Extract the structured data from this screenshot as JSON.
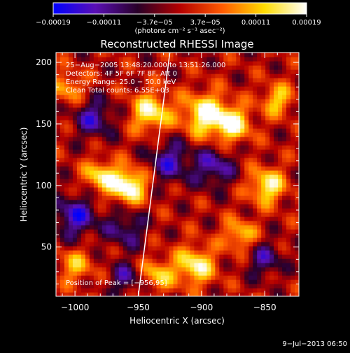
{
  "chart_data": {
    "type": "heatmap",
    "title": "Reconstructed RHESSI Image",
    "xlabel": "Heliocentric X (arcsec)",
    "ylabel": "Heliocentric Y (arcsec)",
    "xlim": [
      -1015,
      -823
    ],
    "ylim": [
      10,
      208
    ],
    "x_ticks": [
      -1000,
      -950,
      -900,
      -850
    ],
    "x_tick_labels": [
      "−1000",
      "−950",
      "−900",
      "−850"
    ],
    "y_ticks": [
      50,
      100,
      150,
      200
    ],
    "y_tick_labels": [
      "50",
      "100",
      "150",
      "200"
    ],
    "colorbar": {
      "range": [
        -0.00019,
        0.00019
      ],
      "tick_labels": [
        "−0.00019",
        "−0.00011",
        "−3.7e−05",
        "3.7e−05",
        "0.00011",
        "0.00019"
      ],
      "unit_text": "(photons cm⁻² s⁻¹ asec⁻²)",
      "colormap": [
        "#0000ff",
        "#5a0fb4",
        "#280028",
        "#b40000",
        "#ff5a00",
        "#ffdc00",
        "#ffffff"
      ]
    },
    "annotations": [
      "25−Aug−2005 13:48:20.000 to 13:51:26.000",
      "Detectors: 4F 5F 6F 7F 8F, Att 0",
      "Energy Range: 25.0 − 50.0 keV",
      "Clean     Total counts: 6.55E+03"
    ],
    "peak_label": "Position of Peak = [−956,95]",
    "peak": [
      -956,
      95
    ],
    "limb_line": [
      [
        -950,
        10
      ],
      [
        -925,
        208
      ]
    ],
    "sources": [
      {
        "x": -958,
        "y": 100,
        "intensity": 1.0,
        "sigma": 10
      },
      {
        "x": -980,
        "y": 108,
        "intensity": 0.7,
        "sigma": 9
      },
      {
        "x": -940,
        "y": 160,
        "intensity": 0.8,
        "sigma": 11
      },
      {
        "x": -897,
        "y": 158,
        "intensity": 0.9,
        "sigma": 12
      },
      {
        "x": -875,
        "y": 150,
        "intensity": 0.8,
        "sigma": 10
      },
      {
        "x": -848,
        "y": 100,
        "intensity": 0.8,
        "sigma": 10
      },
      {
        "x": -840,
        "y": 170,
        "intensity": 0.6,
        "sigma": 9
      },
      {
        "x": -905,
        "y": 35,
        "intensity": 0.8,
        "sigma": 11
      },
      {
        "x": -870,
        "y": 60,
        "intensity": 0.6,
        "sigma": 9
      },
      {
        "x": -1005,
        "y": 180,
        "intensity": 0.5,
        "sigma": 9
      },
      {
        "x": -1000,
        "y": 35,
        "intensity": 0.5,
        "sigma": 10
      },
      {
        "x": -935,
        "y": 28,
        "intensity": 0.6,
        "sigma": 9
      },
      {
        "x": -985,
        "y": 155,
        "intensity": -0.6,
        "sigma": 11
      },
      {
        "x": -960,
        "y": 65,
        "intensity": -0.5,
        "sigma": 11
      },
      {
        "x": -925,
        "y": 120,
        "intensity": -0.6,
        "sigma": 12
      },
      {
        "x": -890,
        "y": 115,
        "intensity": -0.6,
        "sigma": 11
      },
      {
        "x": -1000,
        "y": 75,
        "intensity": -0.7,
        "sigma": 12
      },
      {
        "x": -960,
        "y": 25,
        "intensity": -0.5,
        "sigma": 9
      },
      {
        "x": -850,
        "y": 40,
        "intensity": -0.5,
        "sigma": 10
      }
    ]
  },
  "footer": {
    "timestamp": "9−Jul−2013 06:50"
  }
}
